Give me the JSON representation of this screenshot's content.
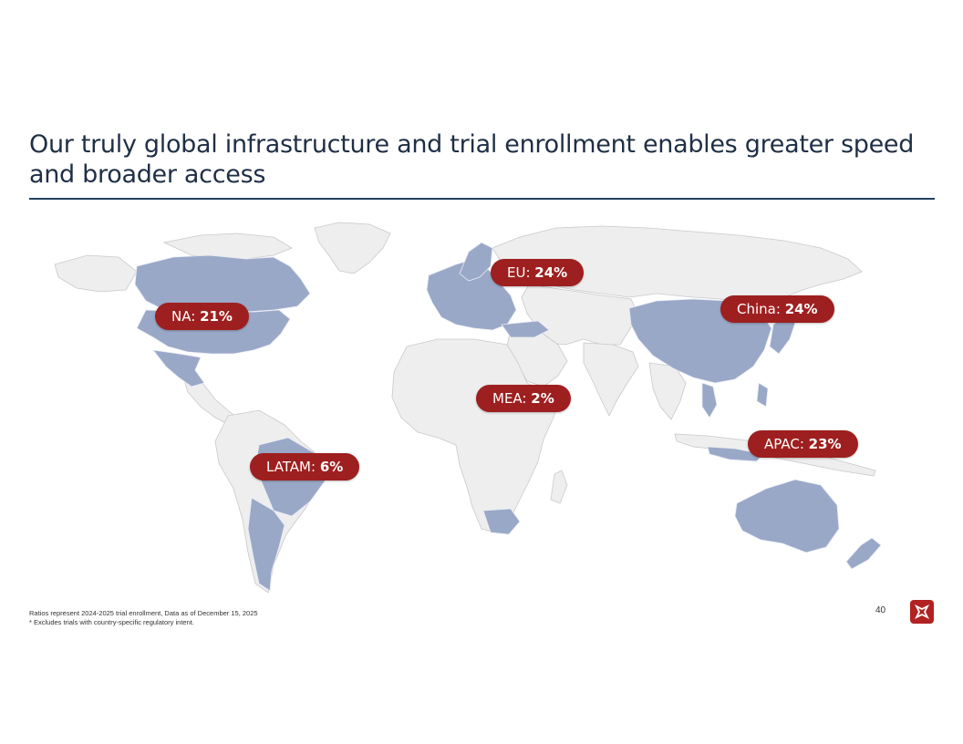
{
  "title": "Our truly global infrastructure and trial enrollment enables greater speed and broader access",
  "regions": [
    {
      "id": "na",
      "label": "NA:",
      "value": "21%"
    },
    {
      "id": "eu",
      "label": "EU:",
      "value": "24%"
    },
    {
      "id": "china",
      "label": "China:",
      "value": "24%"
    },
    {
      "id": "mea",
      "label": "MEA:",
      "value": "2%"
    },
    {
      "id": "apac",
      "label": "APAC:",
      "value": "23%"
    },
    {
      "id": "latam",
      "label": "LATAM:",
      "value": "6%"
    }
  ],
  "footnotes": [
    "Ratios represent 2024-2025 trial enrollment, Data as of December 15, 2025",
    "* Excludes trials with country-specific regulatory intent."
  ],
  "page_number": "40",
  "colors": {
    "highlight": "#9aa8c8",
    "land": "#eeeeee",
    "border": "#c9c9c9",
    "pill": "#9e1f1f",
    "title": "#1f2f45"
  },
  "logo_icon": "company-logo-icon"
}
